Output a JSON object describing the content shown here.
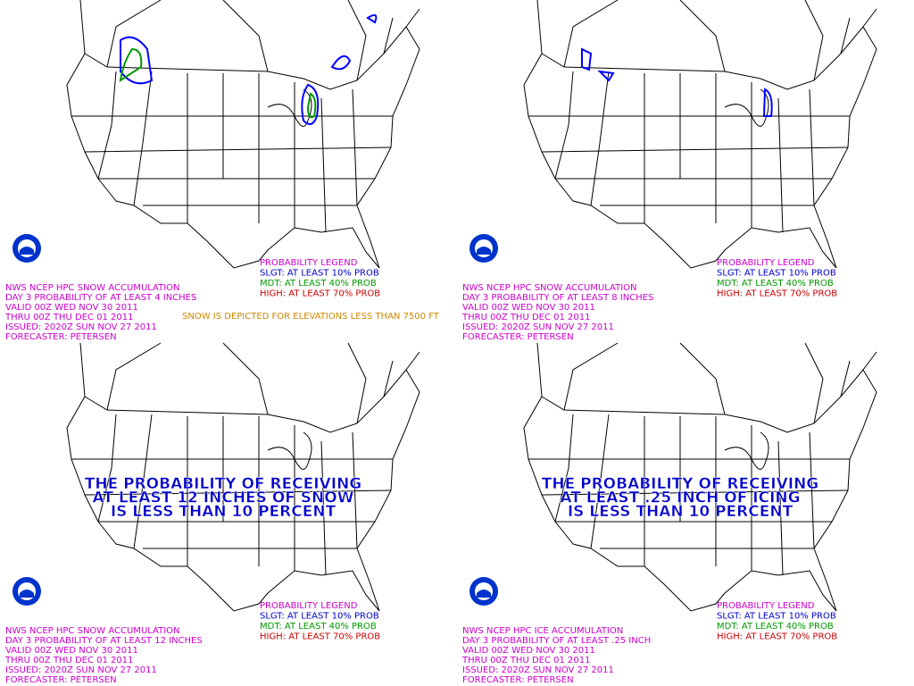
{
  "panels": [
    {
      "lines": [
        "NWS NCEP HPC SNOW ACCUMULATION",
        "DAY 3 PROBABILITY OF AT LEAST 4 INCHES",
        "VALID 00Z WED NOV 30 2011",
        "THRU 00Z THU DEC 01 2011",
        "ISSUED: 2020Z SUN NOV 27 2011",
        "FORECASTER: PETERSEN"
      ],
      "legend": [
        "PROBABILITY LEGEND",
        "SLGT: AT LEAST 10% PROB",
        "MDT: AT LEAST 40% PROB",
        "HIGH: AT LEAST 70% PROB"
      ],
      "note": "SNOW IS DEPICTED FOR ELEVATIONS LESS THAN 7500 FT"
    },
    {
      "lines": [
        "NWS NCEP HPC SNOW ACCUMULATION",
        "DAY 3 PROBABILITY OF AT LEAST 8 INCHES",
        "VALID 00Z WED NOV 30 2011",
        "THRU 00Z THU DEC 01 2011",
        "ISSUED: 2020Z SUN NOV 27 2011",
        "FORECASTER: PETERSEN"
      ],
      "legend": [
        "PROBABILITY LEGEND",
        "SLGT: AT LEAST 10% PROB",
        "MDT: AT LEAST 40% PROB",
        "HIGH: AT LEAST 70% PROB"
      ]
    },
    {
      "lines": [
        "NWS NCEP HPC SNOW ACCUMULATION",
        "DAY 3 PROBABILITY OF AT LEAST 12 INCHES",
        "VALID 00Z WED NOV 30 2011",
        "THRU 00Z THU DEC 01 2011",
        "ISSUED: 2020Z SUN NOV 27 2011",
        "FORECASTER: PETERSEN"
      ],
      "legend": [
        "PROBABILITY LEGEND",
        "SLGT: AT LEAST 10% PROB",
        "MDT: AT LEAST 40% PROB",
        "HIGH: AT LEAST 70% PROB"
      ],
      "message": [
        "THE PROBABILITY OF RECEIVING",
        "AT LEAST 12 INCHES OF SNOW",
        "IS LESS THAN 10 PERCENT"
      ]
    },
    {
      "lines": [
        "NWS NCEP HPC ICE ACCUMULATION",
        "DAY 3 PROBABILITY OF AT LEAST .25 INCH",
        "VALID 00Z WED NOV 30 2011",
        "THRU 00Z THU DEC 01 2011",
        "ISSUED: 2020Z SUN NOV 27 2011",
        "FORECASTER: PETERSEN"
      ],
      "legend": [
        "PROBABILITY LEGEND",
        "SLGT: AT LEAST 10% PROB",
        "MDT: AT LEAST 40% PROB",
        "HIGH: AT LEAST 70% PROB"
      ],
      "message": [
        "THE PROBABILITY OF RECEIVING",
        "AT LEAST .25 INCH OF ICING",
        "IS LESS THAN 10 PERCENT"
      ]
    }
  ]
}
